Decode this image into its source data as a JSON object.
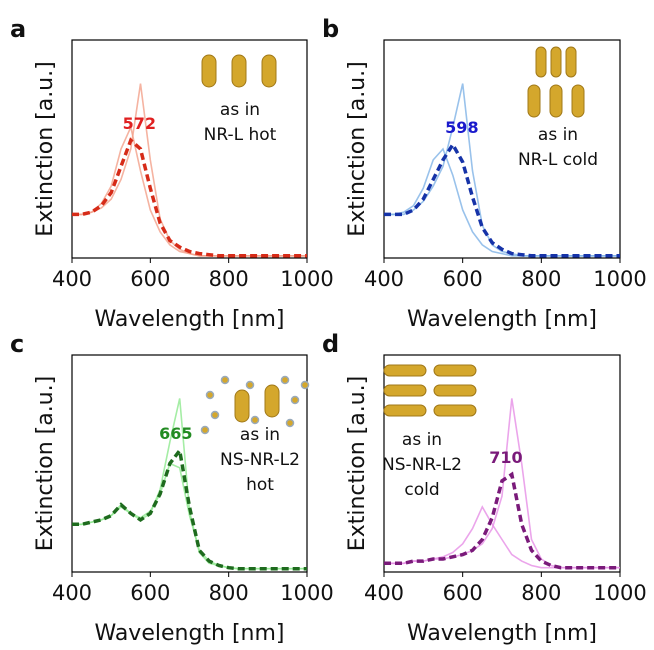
{
  "chart_data": [
    {
      "type": "line",
      "panel": "a",
      "ylabel": "Extinction [a.u.]",
      "xlabel": "Wavelength [nm]",
      "xlim": [
        400,
        1000
      ],
      "xticks": [
        400,
        600,
        800,
        1000
      ],
      "ylim": [
        0,
        1
      ],
      "peak": 572,
      "peak_color": "#e02020",
      "inset": [
        "as in",
        "NR-L hot"
      ],
      "x": [
        400,
        425,
        450,
        475,
        500,
        525,
        550,
        575,
        600,
        625,
        650,
        675,
        700,
        725,
        750,
        775,
        800,
        825,
        850,
        875,
        900,
        925,
        950,
        975,
        1000
      ],
      "series": [
        {
          "color": "#f2a08a",
          "style": "solid",
          "values": [
            0.2,
            0.2,
            0.21,
            0.23,
            0.27,
            0.36,
            0.5,
            0.8,
            0.45,
            0.18,
            0.08,
            0.04,
            0.02,
            0.01,
            0.01,
            0.01,
            0.01,
            0.01,
            0.01,
            0.01,
            0.01,
            0.01,
            0.01,
            0.01,
            0.01
          ]
        },
        {
          "color": "#f2a08a",
          "style": "solid",
          "values": [
            0.2,
            0.2,
            0.21,
            0.25,
            0.33,
            0.5,
            0.6,
            0.4,
            0.22,
            0.12,
            0.06,
            0.03,
            0.02,
            0.01,
            0.01,
            0.01,
            0.01,
            0.01,
            0.01,
            0.01,
            0.01,
            0.01,
            0.01,
            0.01,
            0.01
          ]
        },
        {
          "color": "#d62b18",
          "style": "dashed",
          "values": [
            0.2,
            0.2,
            0.21,
            0.24,
            0.3,
            0.42,
            0.54,
            0.5,
            0.32,
            0.16,
            0.08,
            0.05,
            0.03,
            0.02,
            0.015,
            0.01,
            0.01,
            0.01,
            0.01,
            0.01,
            0.01,
            0.01,
            0.01,
            0.01,
            0.01
          ]
        }
      ]
    },
    {
      "type": "line",
      "panel": "b",
      "ylabel": "Extinction [a.u.]",
      "xlabel": "Wavelength [nm]",
      "xlim": [
        400,
        1000
      ],
      "xticks": [
        400,
        600,
        800,
        1000
      ],
      "ylim": [
        0,
        1
      ],
      "peak": 598,
      "peak_color": "#1a1acc",
      "inset": [
        "as in",
        "NR-L cold"
      ],
      "x": [
        400,
        425,
        450,
        475,
        500,
        525,
        550,
        575,
        600,
        625,
        650,
        675,
        700,
        725,
        750,
        775,
        800,
        825,
        850,
        875,
        900,
        925,
        950,
        975,
        1000
      ],
      "series": [
        {
          "color": "#7fb3e6",
          "style": "solid",
          "values": [
            0.2,
            0.2,
            0.2,
            0.22,
            0.26,
            0.33,
            0.42,
            0.6,
            0.8,
            0.4,
            0.15,
            0.06,
            0.03,
            0.02,
            0.01,
            0.01,
            0.01,
            0.01,
            0.01,
            0.01,
            0.01,
            0.01,
            0.01,
            0.01,
            0.01
          ]
        },
        {
          "color": "#7fb3e6",
          "style": "solid",
          "values": [
            0.2,
            0.2,
            0.21,
            0.24,
            0.32,
            0.45,
            0.5,
            0.38,
            0.22,
            0.12,
            0.06,
            0.03,
            0.02,
            0.01,
            0.01,
            0.01,
            0.01,
            0.01,
            0.01,
            0.01,
            0.01,
            0.01,
            0.01,
            0.01,
            0.01
          ]
        },
        {
          "color": "#1633a8",
          "style": "dashed",
          "values": [
            0.2,
            0.2,
            0.2,
            0.22,
            0.27,
            0.36,
            0.45,
            0.52,
            0.44,
            0.28,
            0.14,
            0.07,
            0.04,
            0.02,
            0.015,
            0.01,
            0.01,
            0.01,
            0.01,
            0.01,
            0.01,
            0.01,
            0.01,
            0.01,
            0.01
          ]
        }
      ]
    },
    {
      "type": "line",
      "panel": "c",
      "ylabel": "Extinction [a.u.]",
      "xlabel": "Wavelength [nm]",
      "xlim": [
        400,
        1000
      ],
      "xticks": [
        400,
        600,
        800,
        1000
      ],
      "ylim": [
        0,
        1
      ],
      "peak": 665,
      "peak_color": "#228b22",
      "inset": [
        "as in",
        "NS-NR-L2",
        "hot"
      ],
      "x": [
        400,
        425,
        450,
        475,
        500,
        525,
        550,
        575,
        600,
        625,
        650,
        675,
        700,
        725,
        750,
        775,
        800,
        825,
        850,
        875,
        900,
        925,
        950,
        975,
        1000
      ],
      "series": [
        {
          "color": "#8fe88f",
          "style": "solid",
          "values": [
            0.22,
            0.22,
            0.23,
            0.24,
            0.26,
            0.31,
            0.27,
            0.24,
            0.27,
            0.38,
            0.6,
            0.8,
            0.28,
            0.09,
            0.04,
            0.03,
            0.02,
            0.015,
            0.015,
            0.015,
            0.015,
            0.015,
            0.015,
            0.015,
            0.015
          ]
        },
        {
          "color": "#8fe88f",
          "style": "solid",
          "values": [
            0.22,
            0.22,
            0.23,
            0.24,
            0.26,
            0.3,
            0.27,
            0.25,
            0.28,
            0.36,
            0.5,
            0.48,
            0.26,
            0.1,
            0.05,
            0.03,
            0.02,
            0.015,
            0.015,
            0.015,
            0.015,
            0.015,
            0.015,
            0.015,
            0.015
          ]
        },
        {
          "color": "#1e6b1e",
          "style": "dashed",
          "values": [
            0.22,
            0.22,
            0.23,
            0.24,
            0.26,
            0.31,
            0.27,
            0.24,
            0.27,
            0.36,
            0.5,
            0.56,
            0.3,
            0.1,
            0.05,
            0.03,
            0.02,
            0.015,
            0.015,
            0.015,
            0.015,
            0.015,
            0.015,
            0.015,
            0.015
          ]
        }
      ]
    },
    {
      "type": "line",
      "panel": "d",
      "ylabel": "Extinction [a.u.]",
      "xlabel": "Wavelength [nm]",
      "xlim": [
        400,
        1000
      ],
      "xticks": [
        400,
        600,
        800,
        1000
      ],
      "ylim": [
        0,
        1
      ],
      "peak": 710,
      "peak_color": "#7a1a7a",
      "inset": [
        "as in",
        "NS-NR-L2",
        "cold"
      ],
      "x": [
        400,
        425,
        450,
        475,
        500,
        525,
        550,
        575,
        600,
        625,
        650,
        675,
        700,
        725,
        750,
        775,
        800,
        825,
        850,
        875,
        900,
        925,
        950,
        975,
        1000
      ],
      "series": [
        {
          "color": "#e68fe6",
          "style": "solid",
          "values": [
            0.04,
            0.04,
            0.04,
            0.05,
            0.05,
            0.06,
            0.06,
            0.07,
            0.08,
            0.1,
            0.13,
            0.2,
            0.35,
            0.8,
            0.5,
            0.15,
            0.06,
            0.03,
            0.02,
            0.02,
            0.02,
            0.02,
            0.02,
            0.02,
            0.02
          ]
        },
        {
          "color": "#e68fe6",
          "style": "solid",
          "values": [
            0.04,
            0.04,
            0.04,
            0.05,
            0.05,
            0.06,
            0.07,
            0.09,
            0.13,
            0.2,
            0.3,
            0.22,
            0.15,
            0.08,
            0.05,
            0.03,
            0.02,
            0.02,
            0.02,
            0.02,
            0.02,
            0.02,
            0.02,
            0.02,
            0.02
          ]
        },
        {
          "color": "#7a1a7a",
          "style": "dashed",
          "values": [
            0.04,
            0.04,
            0.04,
            0.05,
            0.05,
            0.06,
            0.06,
            0.07,
            0.08,
            0.1,
            0.15,
            0.25,
            0.42,
            0.45,
            0.22,
            0.1,
            0.05,
            0.03,
            0.02,
            0.02,
            0.02,
            0.02,
            0.02,
            0.02,
            0.02
          ]
        }
      ]
    }
  ]
}
